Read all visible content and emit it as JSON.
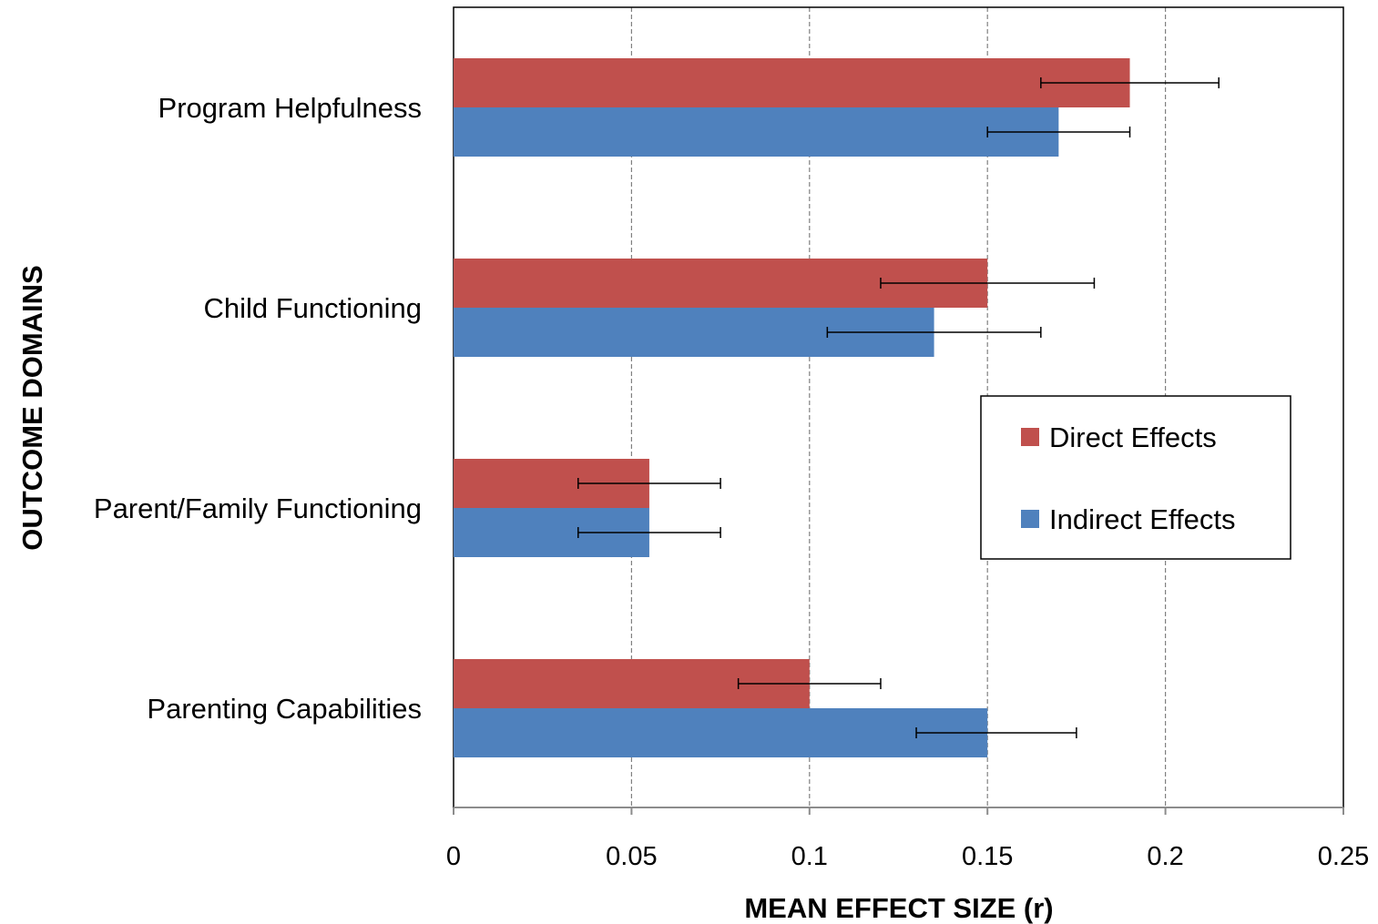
{
  "chart_data": {
    "type": "bar",
    "orientation": "horizontal",
    "categories": [
      "Program Helpfulness",
      "Child Functioning",
      "Parent/Family Functioning",
      "Parenting Capabilities"
    ],
    "series": [
      {
        "name": "Direct Effects",
        "color": "#c0504d",
        "values": [
          0.19,
          0.15,
          0.055,
          0.1
        ],
        "error_low": [
          0.165,
          0.12,
          0.035,
          0.08
        ],
        "error_high": [
          0.215,
          0.18,
          0.075,
          0.12
        ]
      },
      {
        "name": "Indirect Effects",
        "color": "#4f81bd",
        "values": [
          0.17,
          0.135,
          0.055,
          0.15
        ],
        "error_low": [
          0.15,
          0.105,
          0.035,
          0.13
        ],
        "error_high": [
          0.19,
          0.165,
          0.075,
          0.175
        ]
      }
    ],
    "xlabel": "MEAN EFFECT SIZE (r)",
    "ylabel": "OUTCOME DOMAINS",
    "xlim": [
      0,
      0.25
    ],
    "xticks": [
      "0",
      "0.05",
      "0.1",
      "0.15",
      "0.2",
      "0.25"
    ],
    "grid": "vertical dashed",
    "legend_position": "right"
  }
}
